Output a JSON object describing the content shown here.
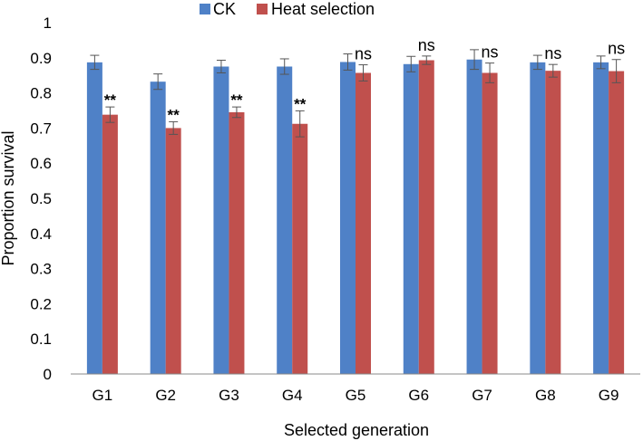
{
  "chart_data": {
    "type": "bar",
    "categories": [
      "G1",
      "G2",
      "G3",
      "G4",
      "G5",
      "G6",
      "G7",
      "G8",
      "G9"
    ],
    "series": [
      {
        "name": "CK",
        "color": "#4f81c7",
        "values": [
          0.887,
          0.832,
          0.875,
          0.875,
          0.888,
          0.882,
          0.895,
          0.887,
          0.887
        ],
        "errors": [
          0.02,
          0.022,
          0.018,
          0.022,
          0.023,
          0.022,
          0.028,
          0.02,
          0.018
        ]
      },
      {
        "name": "Heat selection",
        "color": "#c0504d",
        "values": [
          0.738,
          0.7,
          0.745,
          0.712,
          0.857,
          0.893,
          0.857,
          0.863,
          0.862
        ],
        "errors": [
          0.022,
          0.018,
          0.015,
          0.037,
          0.023,
          0.012,
          0.028,
          0.018,
          0.033
        ]
      }
    ],
    "significance": [
      "**",
      "**",
      "**",
      "**",
      "ns",
      "ns",
      "ns",
      "ns",
      "ns"
    ],
    "xlabel": "Selected generation",
    "ylabel": "Proportion survival",
    "ylim": [
      0,
      1
    ],
    "yticks": [
      "0",
      "0.1",
      "0.2",
      "0.3",
      "0.4",
      "0.5",
      "0.6",
      "0.7",
      "0.8",
      "0.9",
      "1"
    ],
    "grid": false,
    "legend_position": "top-center"
  }
}
